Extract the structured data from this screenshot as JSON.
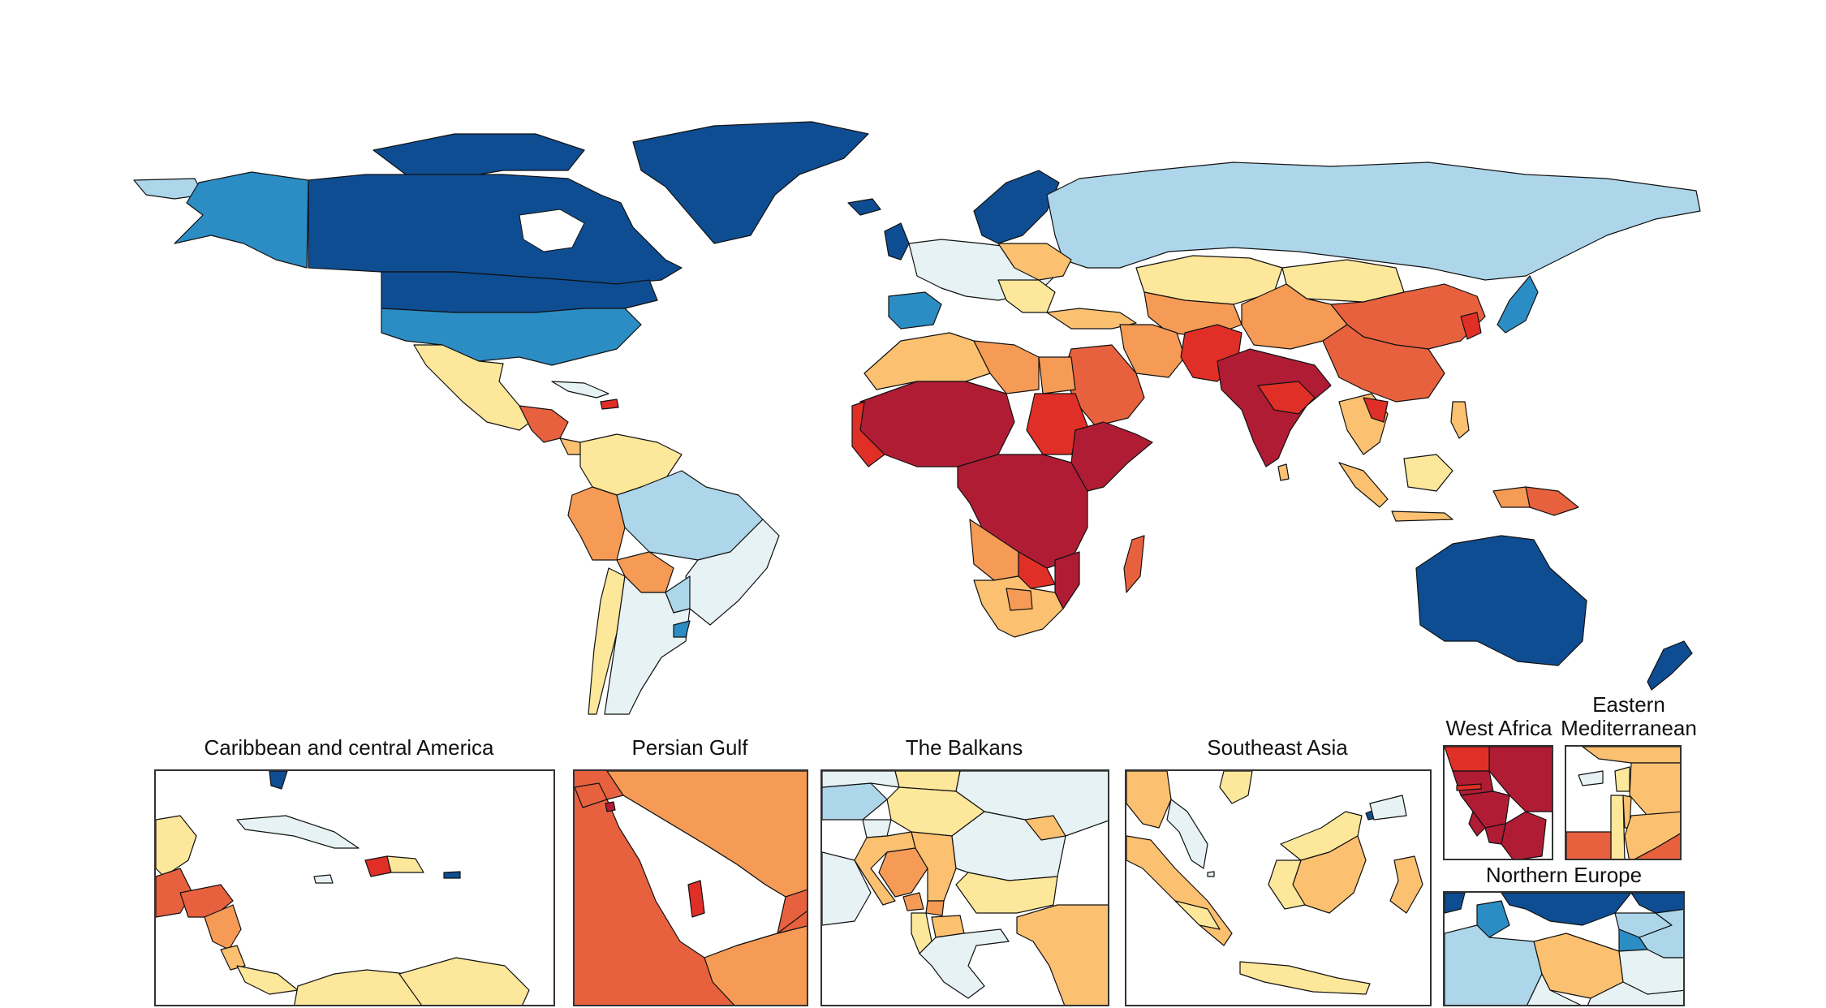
{
  "figure": {
    "insets": [
      {
        "id": "caribbean",
        "title": "Caribbean and central America"
      },
      {
        "id": "gulf",
        "title": "Persian Gulf"
      },
      {
        "id": "balkans",
        "title": "The Balkans"
      },
      {
        "id": "seasia",
        "title": "Southeast Asia"
      },
      {
        "id": "westafrica",
        "title": "West Africa"
      },
      {
        "id": "emed",
        "title": "Eastern Mediterranean"
      },
      {
        "id": "neurope",
        "title": "Northern Europe"
      }
    ]
  },
  "palette": {
    "darkest_blue": "#0e4d92",
    "mid_blue": "#2c8dc4",
    "light_blue": "#add6ea",
    "pale_blue": "#e6f2f3",
    "pale_yellow": "#fde79a",
    "light_orange": "#fbc070",
    "orange": "#f59b56",
    "red_orange": "#e8613e",
    "red": "#e02f27",
    "dark_red": "#b01c34"
  }
}
